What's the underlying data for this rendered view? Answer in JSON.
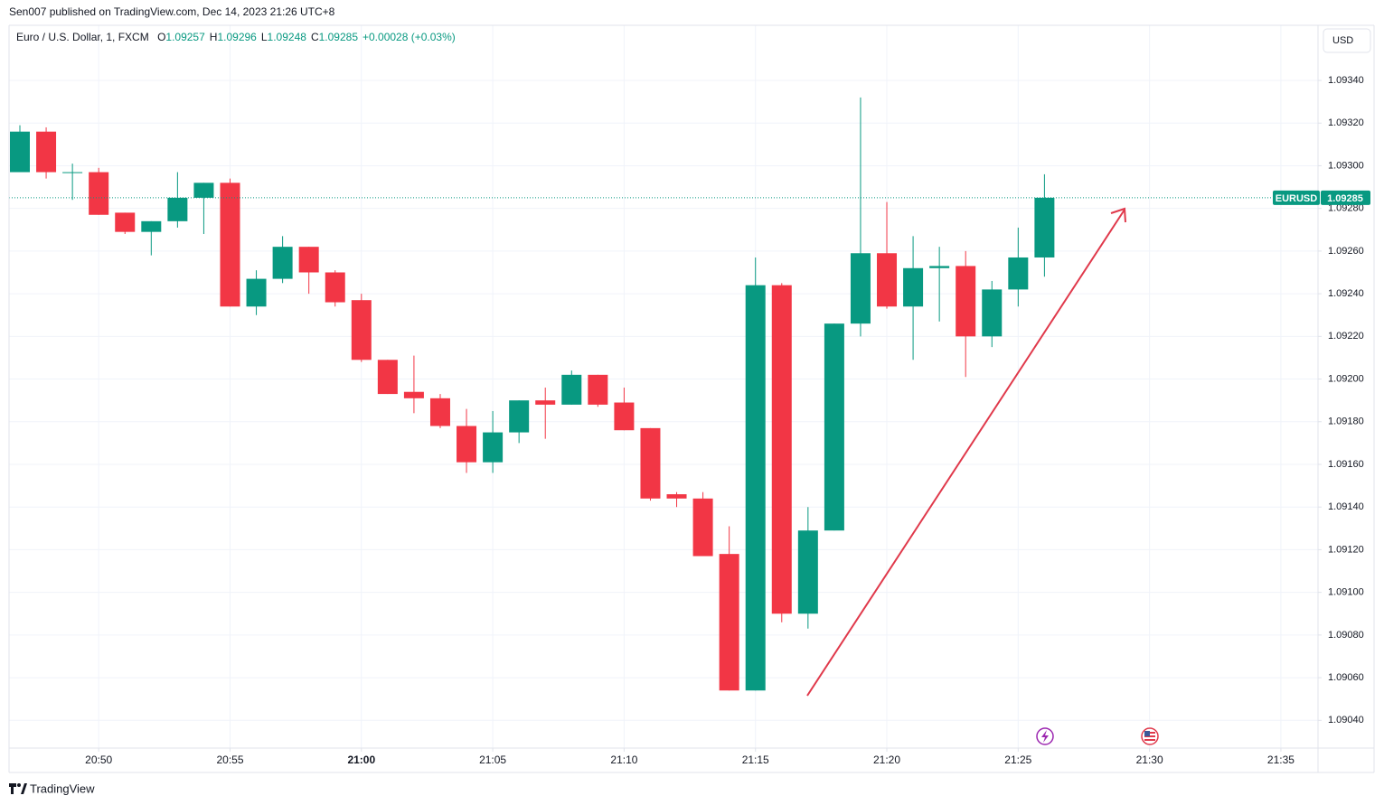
{
  "header": {
    "published": "Sen007 published on TradingView.com, Dec 14, 2023 21:26 UTC+8",
    "symbol": "Euro / U.S. Dollar, 1, FXCM",
    "ohlc": [
      {
        "key": "O",
        "value": "1.09257"
      },
      {
        "key": "H",
        "value": "1.09296"
      },
      {
        "key": "L",
        "value": "1.09248"
      },
      {
        "key": "C",
        "value": "1.09285"
      }
    ],
    "change": "+0.00028 (+0.03%)",
    "currency": "USD"
  },
  "chart_data": {
    "type": "candlestick",
    "up_color": "#089981",
    "down_color": "#f23645",
    "x": [
      "20:47",
      "20:48",
      "20:49",
      "20:50",
      "20:51",
      "20:52",
      "20:53",
      "20:54",
      "20:55",
      "20:56",
      "20:57",
      "20:58",
      "20:59",
      "21:00",
      "21:01",
      "21:02",
      "21:03",
      "21:04",
      "21:05",
      "21:06",
      "21:07",
      "21:08",
      "21:09",
      "21:10",
      "21:11",
      "21:12",
      "21:13",
      "21:14",
      "21:15",
      "21:16",
      "21:17",
      "21:18",
      "21:19",
      "21:20",
      "21:21",
      "21:22",
      "21:23",
      "21:24",
      "21:25",
      "21:26"
    ],
    "open": [
      1.09297,
      1.09316,
      1.09297,
      1.09297,
      1.09278,
      1.09269,
      1.09274,
      1.09285,
      1.09292,
      1.09234,
      1.09247,
      1.09262,
      1.0925,
      1.09237,
      1.09209,
      1.09194,
      1.09191,
      1.09178,
      1.09161,
      1.09175,
      1.0919,
      1.09188,
      1.09202,
      1.09189,
      1.09177,
      1.09146,
      1.09144,
      1.09118,
      1.09054,
      1.09244,
      1.0909,
      1.09129,
      1.09226,
      1.09259,
      1.09234,
      1.09252,
      1.09253,
      1.0922,
      1.09242,
      1.09257
    ],
    "high": [
      1.09319,
      1.09318,
      1.09301,
      1.09299,
      1.09278,
      1.09274,
      1.09297,
      1.09292,
      1.09294,
      1.09251,
      1.09267,
      1.09262,
      1.09251,
      1.0924,
      1.09209,
      1.09211,
      1.09193,
      1.09186,
      1.09185,
      1.0919,
      1.09196,
      1.09204,
      1.09202,
      1.09196,
      1.09177,
      1.09147,
      1.09147,
      1.09131,
      1.09257,
      1.09245,
      1.0914,
      1.09226,
      1.09332,
      1.09283,
      1.09267,
      1.09262,
      1.0926,
      1.09246,
      1.09271,
      1.09296
    ],
    "low": [
      1.09297,
      1.09294,
      1.09284,
      1.09277,
      1.09268,
      1.09258,
      1.09271,
      1.09268,
      1.09234,
      1.0923,
      1.09245,
      1.0924,
      1.09234,
      1.09208,
      1.09193,
      1.09184,
      1.09177,
      1.09156,
      1.09156,
      1.0917,
      1.09172,
      1.09188,
      1.09187,
      1.09176,
      1.09143,
      1.0914,
      1.09117,
      1.09054,
      1.09054,
      1.09086,
      1.09083,
      1.09129,
      1.0922,
      1.09233,
      1.09209,
      1.09227,
      1.09201,
      1.09215,
      1.09234,
      1.09248
    ],
    "close": [
      1.09316,
      1.09297,
      1.09297,
      1.09277,
      1.09269,
      1.09274,
      1.09285,
      1.09292,
      1.09234,
      1.09247,
      1.09262,
      1.0925,
      1.09236,
      1.09209,
      1.09193,
      1.09191,
      1.09178,
      1.09161,
      1.09175,
      1.0919,
      1.09188,
      1.09202,
      1.09188,
      1.09176,
      1.09144,
      1.09144,
      1.09117,
      1.09054,
      1.09244,
      1.0909,
      1.09129,
      1.09226,
      1.09259,
      1.09234,
      1.09252,
      1.09253,
      1.0922,
      1.09242,
      1.09257,
      1.09285
    ],
    "xlim": [
      "20:47",
      "21:36"
    ],
    "xticks": [
      "20:50",
      "20:55",
      "21:00",
      "21:05",
      "21:10",
      "21:15",
      "21:20",
      "21:25",
      "21:30",
      "21:35"
    ],
    "ylim": [
      1.09027,
      1.09365
    ],
    "yticks": [
      {
        "value": 1.0904,
        "label": "1.09040"
      },
      {
        "value": 1.0906,
        "label": "1.09060"
      },
      {
        "value": 1.0908,
        "label": "1.09080"
      },
      {
        "value": 1.091,
        "label": "1.09100"
      },
      {
        "value": 1.0912,
        "label": "1.09120"
      },
      {
        "value": 1.0914,
        "label": "1.09140"
      },
      {
        "value": 1.0916,
        "label": "1.09160"
      },
      {
        "value": 1.0918,
        "label": "1.09180"
      },
      {
        "value": 1.092,
        "label": "1.09200"
      },
      {
        "value": 1.0922,
        "label": "1.09220"
      },
      {
        "value": 1.0924,
        "label": "1.09240"
      },
      {
        "value": 1.0926,
        "label": "1.09260"
      },
      {
        "value": 1.0928,
        "label": "1.09280"
      },
      {
        "value": 1.093,
        "label": "1.09300"
      },
      {
        "value": 1.0932,
        "label": "1.09320"
      },
      {
        "value": 1.0934,
        "label": "1.09340"
      }
    ],
    "grid": true,
    "last_price": {
      "symbol": "EURUSD",
      "value": 1.09285,
      "label": "1.09285"
    }
  },
  "footer": {
    "brand": "TradingView"
  }
}
